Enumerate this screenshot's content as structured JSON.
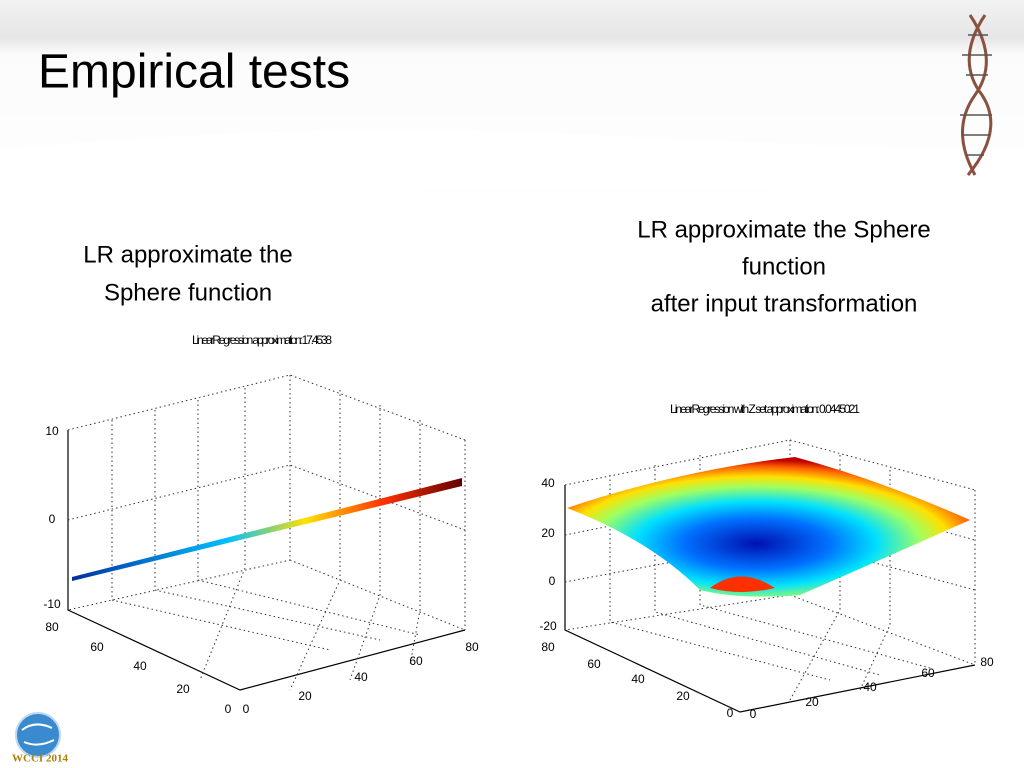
{
  "title": "Empirical tests",
  "left": {
    "caption": [
      "LR approximate the",
      "Sphere function"
    ],
    "plot": {
      "title": "LinearRegression approximation: 17.4538",
      "zticks": [
        10,
        0,
        -10
      ],
      "yticks": [
        80,
        60,
        40,
        20,
        0
      ],
      "xticks": [
        0,
        20,
        40,
        60,
        80
      ]
    }
  },
  "right": {
    "caption": [
      "LR approximate the Sphere",
      "function",
      "after input transformation"
    ],
    "plot": {
      "title": "LinearRegression with Z set approximation: 0.0445021",
      "zticks": [
        40,
        20,
        0,
        -20
      ],
      "yticks": [
        80,
        60,
        40,
        20,
        0
      ],
      "xticks": [
        0,
        20,
        40,
        60,
        80
      ]
    }
  },
  "logo": {
    "text": "WCCI 2014"
  }
}
